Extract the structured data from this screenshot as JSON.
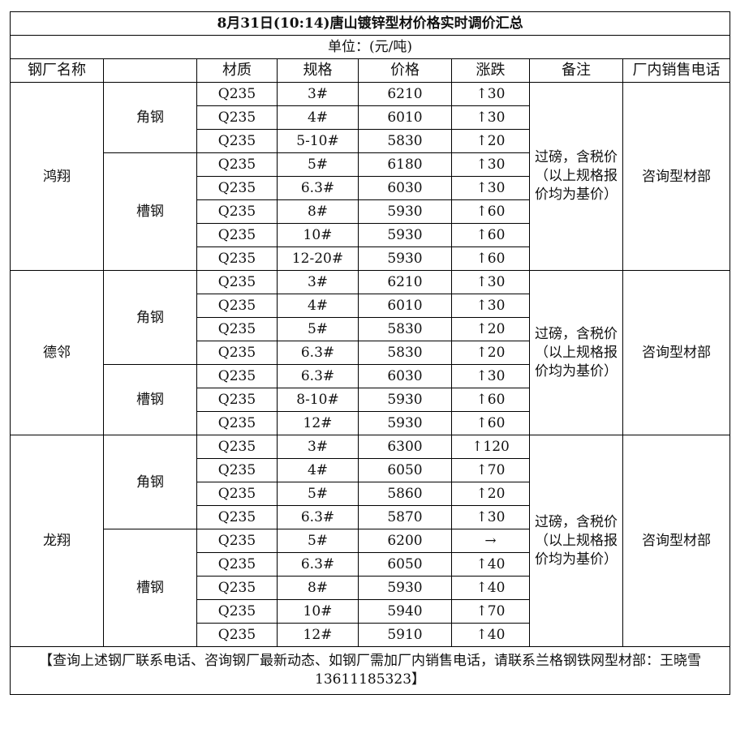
{
  "title": "8月31日(10:14)唐山镀锌型材价格实时调价汇总",
  "unit": "单位：(元/吨)",
  "headers": [
    "钢厂名称",
    "",
    "材质",
    "规格",
    "价格",
    "涨跌",
    "备注",
    "厂内销售电话"
  ],
  "icons": {
    "up": "↑",
    "flat": "→"
  },
  "mills": [
    {
      "name": "鸿翔",
      "note": "过磅，含税价（以上规格报价均为基价）",
      "phone": "咨询型材部",
      "groups": [
        {
          "type": "角钢",
          "rows": [
            [
              "Q235",
              "3#",
              "6210",
              "↑30"
            ],
            [
              "Q235",
              "4#",
              "6010",
              "↑30"
            ],
            [
              "Q235",
              "5-10#",
              "5830",
              "↑20"
            ]
          ]
        },
        {
          "type": "槽钢",
          "rows": [
            [
              "Q235",
              "5#",
              "6180",
              "↑30"
            ],
            [
              "Q235",
              "6.3#",
              "6030",
              "↑30"
            ],
            [
              "Q235",
              "8#",
              "5930",
              "↑60"
            ],
            [
              "Q235",
              "10#",
              "5930",
              "↑60"
            ],
            [
              "Q235",
              "12-20#",
              "5930",
              "↑60"
            ]
          ]
        }
      ]
    },
    {
      "name": "德邻",
      "note": "过磅，含税价（以上规格报价均为基价）",
      "phone": "咨询型材部",
      "groups": [
        {
          "type": "角钢",
          "rows": [
            [
              "Q235",
              "3#",
              "6210",
              "↑30"
            ],
            [
              "Q235",
              "4#",
              "6010",
              "↑30"
            ],
            [
              "Q235",
              "5#",
              "5830",
              "↑20"
            ],
            [
              "Q235",
              "6.3#",
              "5830",
              "↑20"
            ]
          ]
        },
        {
          "type": "槽钢",
          "rows": [
            [
              "Q235",
              "6.3#",
              "6030",
              "↑30"
            ],
            [
              "Q235",
              "8-10#",
              "5930",
              "↑60"
            ],
            [
              "Q235",
              "12#",
              "5930",
              "↑60"
            ]
          ]
        }
      ]
    },
    {
      "name": "龙翔",
      "note": "过磅，含税价（以上规格报价均为基价）",
      "phone": "咨询型材部",
      "groups": [
        {
          "type": "角钢",
          "rows": [
            [
              "Q235",
              "3#",
              "6300",
              "↑120"
            ],
            [
              "Q235",
              "4#",
              "6050",
              "↑70"
            ],
            [
              "Q235",
              "5#",
              "5860",
              "↑20"
            ],
            [
              "Q235",
              "6.3#",
              "5870",
              "↑30"
            ]
          ]
        },
        {
          "type": "槽钢",
          "rows": [
            [
              "Q235",
              "5#",
              "6200",
              "→"
            ],
            [
              "Q235",
              "6.3#",
              "6050",
              "↑40"
            ],
            [
              "Q235",
              "8#",
              "5930",
              "↑40"
            ],
            [
              "Q235",
              "10#",
              "5940",
              "↑70"
            ],
            [
              "Q235",
              "12#",
              "5910",
              "↑40"
            ]
          ]
        }
      ]
    }
  ],
  "footer": "【查询上述钢厂联系电话、咨询钢厂最新动态、如钢厂需加厂内销售电话，请联系兰格钢铁网型材部：王晓雪13611185323】"
}
